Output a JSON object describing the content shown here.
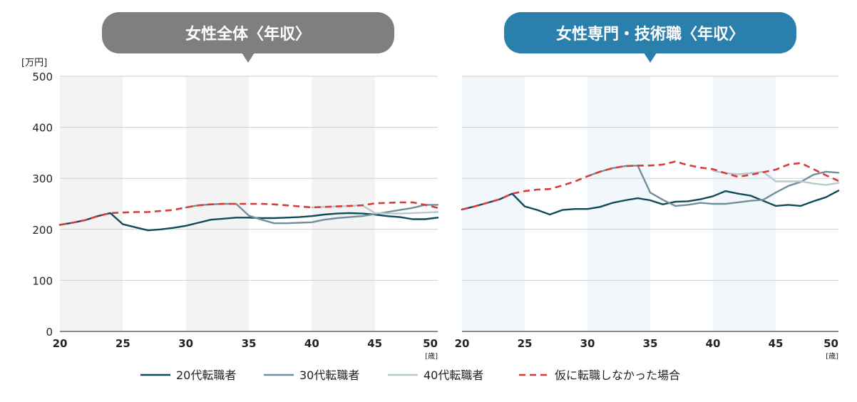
{
  "chart_data": [
    {
      "type": "line",
      "title": "女性全体〈年収〉",
      "ylabel": "[万円]",
      "xlabel": "[歳]",
      "xlim": [
        20,
        50
      ],
      "ylim": [
        0,
        500
      ],
      "xticks": [
        20,
        25,
        30,
        35,
        40,
        45,
        50
      ],
      "yticks": [
        0,
        100,
        200,
        300,
        400,
        500
      ],
      "grid": true,
      "shaded_bands": [
        [
          20,
          25
        ],
        [
          30,
          35
        ],
        [
          40,
          45
        ]
      ],
      "series": [
        {
          "name": "20代転職者",
          "x": [
            20,
            21,
            22,
            23,
            24,
            25,
            26,
            27,
            28,
            29,
            30,
            31,
            32,
            33,
            34,
            35,
            36,
            37,
            38,
            39,
            40,
            41,
            42,
            43,
            44,
            45,
            46,
            47,
            48,
            49,
            50
          ],
          "values": [
            209,
            213,
            218,
            226,
            232,
            210,
            204,
            198,
            200,
            203,
            207,
            213,
            219,
            221,
            223,
            223,
            222,
            222,
            223,
            224,
            226,
            229,
            231,
            232,
            231,
            229,
            226,
            224,
            220,
            220,
            223
          ]
        },
        {
          "name": "30代転職者",
          "x": [
            30,
            31,
            32,
            33,
            34,
            35,
            36,
            37,
            38,
            39,
            40,
            41,
            42,
            43,
            44,
            45,
            46,
            47,
            48,
            49,
            50
          ],
          "values": [
            243,
            247,
            249,
            250,
            250,
            227,
            219,
            212,
            212,
            213,
            214,
            219,
            222,
            224,
            226,
            230,
            234,
            238,
            242,
            248,
            248
          ]
        },
        {
          "name": "40代転職者",
          "x": [
            40,
            41,
            42,
            43,
            44,
            45,
            46,
            47,
            48,
            49,
            50
          ],
          "values": [
            243,
            244,
            245,
            246,
            247,
            232,
            231,
            231,
            232,
            233,
            234
          ]
        },
        {
          "name": "仮に転職しなかった場合",
          "x": [
            20,
            21,
            22,
            23,
            24,
            25,
            26,
            27,
            28,
            29,
            30,
            31,
            32,
            33,
            34,
            35,
            36,
            37,
            38,
            39,
            40,
            41,
            42,
            43,
            44,
            45,
            46,
            47,
            48,
            49,
            50
          ],
          "values": [
            209,
            213,
            218,
            226,
            232,
            233,
            234,
            234,
            236,
            238,
            243,
            247,
            249,
            250,
            250,
            250,
            250,
            249,
            247,
            245,
            243,
            244,
            245,
            246,
            247,
            251,
            252,
            253,
            253,
            248,
            242
          ]
        }
      ]
    },
    {
      "type": "line",
      "title": "女性専門・技術職〈年収〉",
      "ylabel": "",
      "xlabel": "[歳]",
      "xlim": [
        20,
        50
      ],
      "ylim": [
        0,
        500
      ],
      "xticks": [
        20,
        25,
        30,
        35,
        40,
        45,
        50
      ],
      "yticks": [
        0,
        100,
        200,
        300,
        400,
        500
      ],
      "grid": true,
      "shaded_bands": [
        [
          20,
          25
        ],
        [
          30,
          35
        ],
        [
          40,
          45
        ]
      ],
      "series": [
        {
          "name": "20代転職者",
          "x": [
            20,
            21,
            22,
            23,
            24,
            25,
            26,
            27,
            28,
            29,
            30,
            31,
            32,
            33,
            34,
            35,
            36,
            37,
            38,
            39,
            40,
            41,
            42,
            43,
            44,
            45,
            46,
            47,
            48,
            49,
            50
          ],
          "values": [
            239,
            245,
            252,
            259,
            270,
            245,
            238,
            229,
            238,
            240,
            240,
            244,
            252,
            257,
            261,
            257,
            249,
            254,
            255,
            259,
            265,
            275,
            270,
            266,
            256,
            246,
            248,
            246,
            255,
            263,
            276
          ]
        },
        {
          "name": "30代転職者",
          "x": [
            30,
            31,
            32,
            33,
            34,
            35,
            36,
            37,
            38,
            39,
            40,
            41,
            42,
            43,
            44,
            45,
            46,
            47,
            48,
            49,
            50
          ],
          "values": [
            304,
            313,
            320,
            324,
            325,
            272,
            258,
            246,
            248,
            252,
            250,
            250,
            253,
            256,
            258,
            272,
            285,
            293,
            307,
            313,
            311
          ]
        },
        {
          "name": "40代転職者",
          "x": [
            40,
            41,
            42,
            43,
            44,
            45,
            46,
            47,
            48,
            49,
            50
          ],
          "values": [
            315,
            310,
            308,
            310,
            313,
            294,
            294,
            294,
            290,
            287,
            291
          ]
        },
        {
          "name": "仮に転職しなかった場合",
          "x": [
            20,
            21,
            22,
            23,
            24,
            25,
            26,
            27,
            28,
            29,
            30,
            31,
            32,
            33,
            34,
            35,
            36,
            37,
            38,
            39,
            40,
            41,
            42,
            43,
            44,
            45,
            46,
            47,
            48,
            49,
            50
          ],
          "values": [
            239,
            245,
            252,
            259,
            270,
            275,
            278,
            279,
            286,
            294,
            304,
            313,
            320,
            324,
            325,
            325,
            327,
            333,
            326,
            321,
            318,
            310,
            303,
            307,
            312,
            317,
            327,
            330,
            318,
            306,
            295
          ]
        }
      ]
    }
  ],
  "colors": {
    "s20": "#0f4a58",
    "s30": "#6f8f9b",
    "s40": "#b7c8ce",
    "noChange": "#d93a3a",
    "title1": "#7f7f7f",
    "title2": "#2a7fac",
    "band1": "#f3f3f3",
    "band2": "#f2f7fb",
    "grid": "#cfcfcf"
  }
}
